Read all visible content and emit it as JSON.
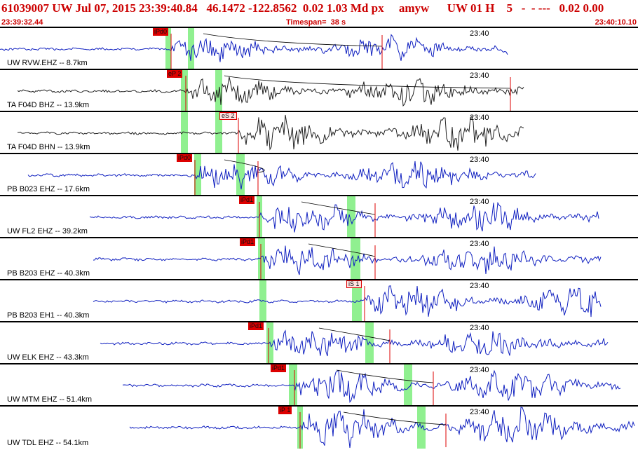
{
  "header": {
    "title": "61039007 UW Jul 07, 2015 23:39:40.84   46.1472 -122.8562  0.02 1.03 Md px     amyw      UW 01 H    5   -  - ---   0.02 0.00",
    "start_time": "23:39:32.44",
    "timespan": "Timespan=  38 s",
    "end_time": "23:40:10.10"
  },
  "colors": {
    "waveform": "#1020c0",
    "waveform_alt": "#202020",
    "pick": "#dd0000",
    "window": "#90f090",
    "text_red": "#cc0000"
  },
  "panels": [
    {
      "label": "UW RVW.EHZ -- 8.7km",
      "time": "23:40",
      "pick": "iPd0",
      "pick_type": "P"
    },
    {
      "label": "TA F04D BHZ -- 13.9km",
      "time": "23:40",
      "pick": "eP 2",
      "pick_type": "P"
    },
    {
      "label": "TA F04D BHN -- 13.9km",
      "time": "23:40",
      "pick": "eS 2",
      "pick_type": "S"
    },
    {
      "label": "PB B023 EHZ -- 17.6km",
      "time": "23:40",
      "pick": "iPd0",
      "pick_type": "P"
    },
    {
      "label": "UW FL2 EHZ -- 39.2km",
      "time": "23:40",
      "pick": "iPd1",
      "pick_type": "P"
    },
    {
      "label": "PB B203 EHZ -- 40.3km",
      "time": "23:40",
      "pick": "iPd1",
      "pick_type": "P"
    },
    {
      "label": "PB B203 EH1 -- 40.3km",
      "time": "23:40",
      "pick": "iS 1",
      "pick_type": "S"
    },
    {
      "label": "UW ELK EHZ -- 43.3km",
      "time": "23:40",
      "pick": "iPd1",
      "pick_type": "P"
    },
    {
      "label": "UW MTM EHZ -- 51.4km",
      "time": "23:40",
      "pick": "iPd1",
      "pick_type": "P"
    },
    {
      "label": "UW TDL EHZ -- 54.1km",
      "time": "23:40",
      "pick": "iP 1",
      "pick_type": "P"
    }
  ]
}
